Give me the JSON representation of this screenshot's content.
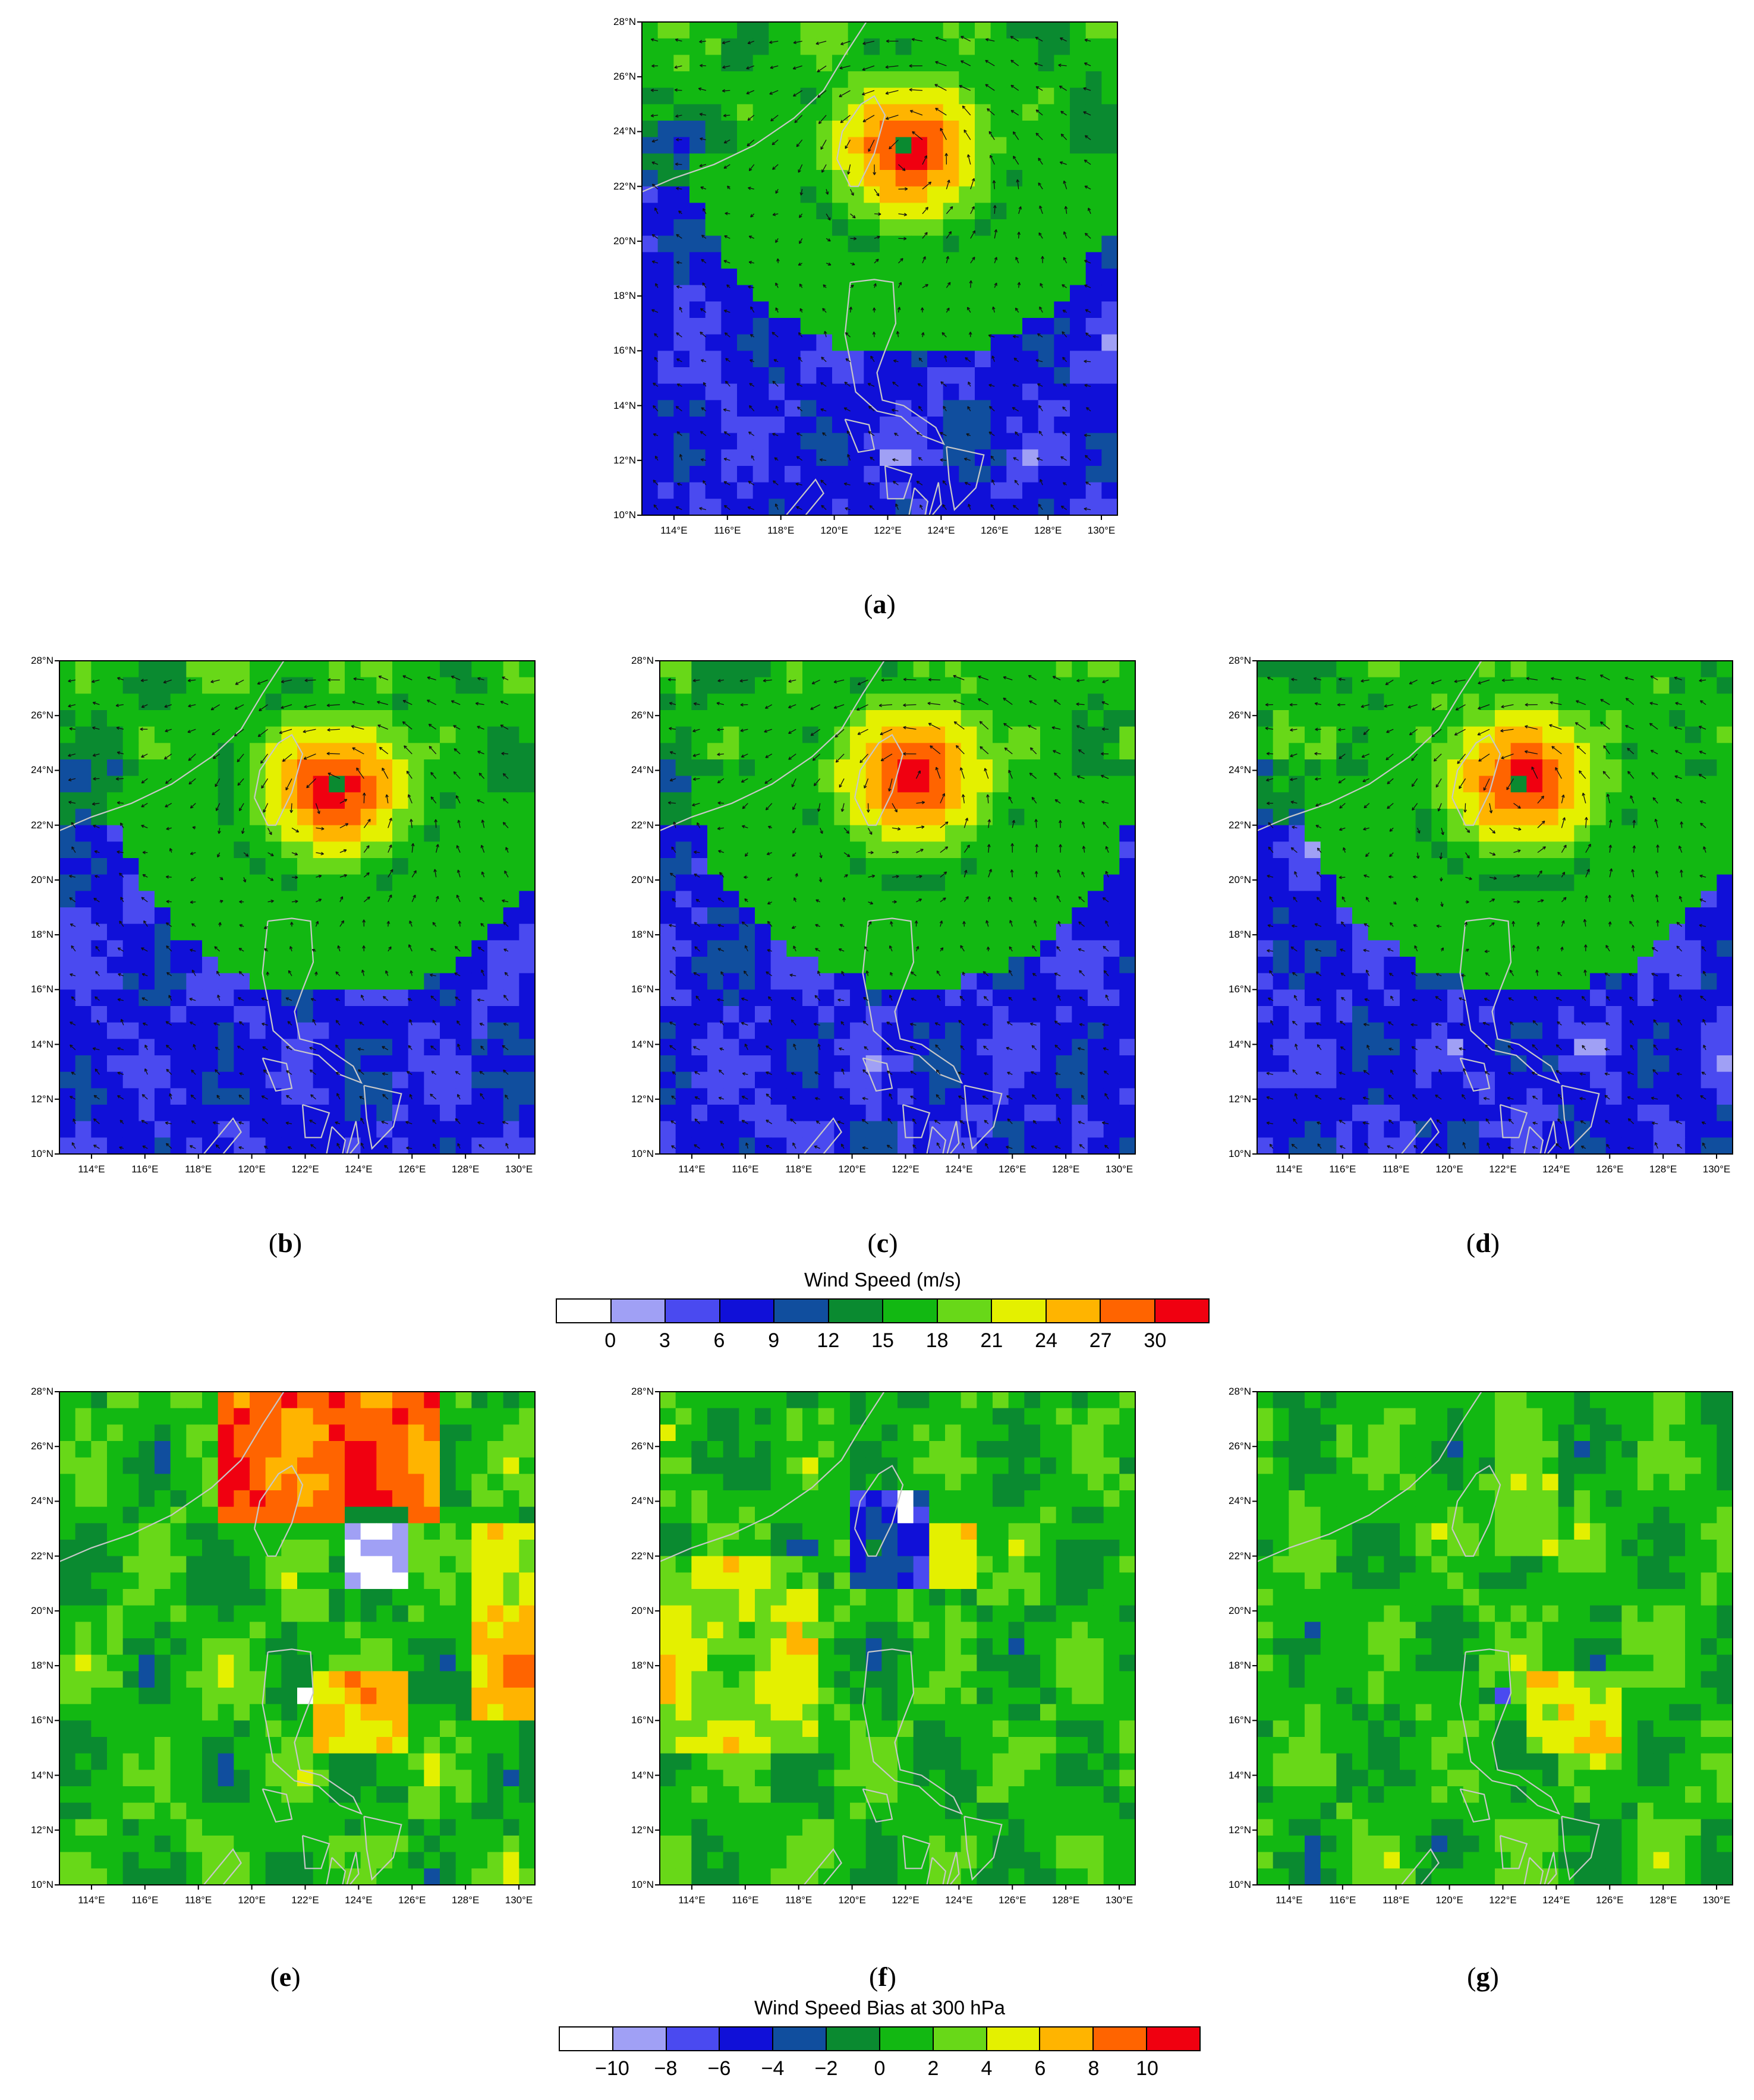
{
  "axes": {
    "lat_ticks": [
      "28°N",
      "26°N",
      "24°N",
      "22°N",
      "20°N",
      "18°N",
      "16°N",
      "14°N",
      "12°N",
      "10°N"
    ],
    "lon_ticks": [
      "114°E",
      "116°E",
      "118°E",
      "120°E",
      "122°E",
      "124°E",
      "126°E",
      "128°E",
      "130°E"
    ],
    "lat_range": [
      10,
      28
    ],
    "lon_range": [
      112.8,
      130.6
    ]
  },
  "panels": [
    {
      "letter": "a",
      "field": "speed",
      "typhoon_center": [
        122.8,
        23.4
      ],
      "peak": 30
    },
    {
      "letter": "b",
      "field": "speed",
      "typhoon_center": [
        123.1,
        23.4
      ],
      "peak": 30
    },
    {
      "letter": "c",
      "field": "speed",
      "typhoon_center": [
        122.3,
        23.8
      ],
      "peak": 30
    },
    {
      "letter": "d",
      "field": "speed",
      "typhoon_center": [
        122.8,
        23.6
      ],
      "peak": 30
    },
    {
      "letter": "e",
      "field": "bias"
    },
    {
      "letter": "f",
      "field": "bias"
    },
    {
      "letter": "g",
      "field": "bias"
    }
  ],
  "colorbars": {
    "speed": {
      "title": "Wind Speed  (m/s)",
      "labels": [
        "0",
        "3",
        "6",
        "9",
        "12",
        "15",
        "18",
        "21",
        "24",
        "27",
        "30"
      ],
      "colors": [
        "#ffffff",
        "#a0a0f5",
        "#4a4af0",
        "#1010d8",
        "#104e9e",
        "#0a8a30",
        "#12b812",
        "#68d818",
        "#e4f000",
        "#ffb400",
        "#ff6400",
        "#f00010"
      ]
    },
    "bias": {
      "title": "Wind Speed Bias at 300 hPa",
      "labels": [
        "−10",
        "−8",
        "−6",
        "−4",
        "−2",
        "0",
        "2",
        "4",
        "6",
        "8",
        "10"
      ],
      "colors": [
        "#ffffff",
        "#a0a0f5",
        "#4a4af0",
        "#1010d8",
        "#104e9e",
        "#0a8a30",
        "#12b812",
        "#68d818",
        "#e4f000",
        "#ffb400",
        "#ff6400",
        "#f00010"
      ]
    }
  }
}
